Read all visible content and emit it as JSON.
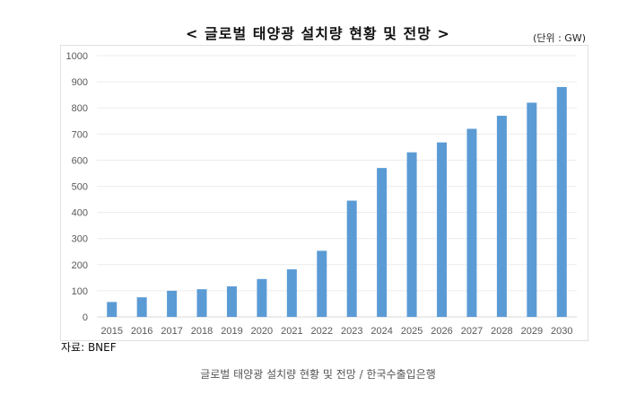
{
  "chart_data": {
    "type": "bar",
    "title": "< 글로벌 태양광 설치량 현황 및 전망 >",
    "unit_label": "(단위 : GW)",
    "categories": [
      "2015",
      "2016",
      "2017",
      "2018",
      "2019",
      "2020",
      "2021",
      "2022",
      "2023",
      "2024",
      "2025",
      "2026",
      "2027",
      "2028",
      "2029",
      "2030"
    ],
    "values": [
      57,
      75,
      100,
      106,
      117,
      145,
      182,
      253,
      445,
      570,
      630,
      668,
      720,
      770,
      820,
      880
    ],
    "ylim": [
      0,
      1000
    ],
    "yticks": [
      0,
      100,
      200,
      300,
      400,
      500,
      600,
      700,
      800,
      900,
      1000
    ],
    "grid": true,
    "bar_color": "#5b9bd5"
  },
  "source": "자료: BNEF",
  "caption": "글로벌 태양광 설치량 현황 및 전망 / 한국수출입은행"
}
